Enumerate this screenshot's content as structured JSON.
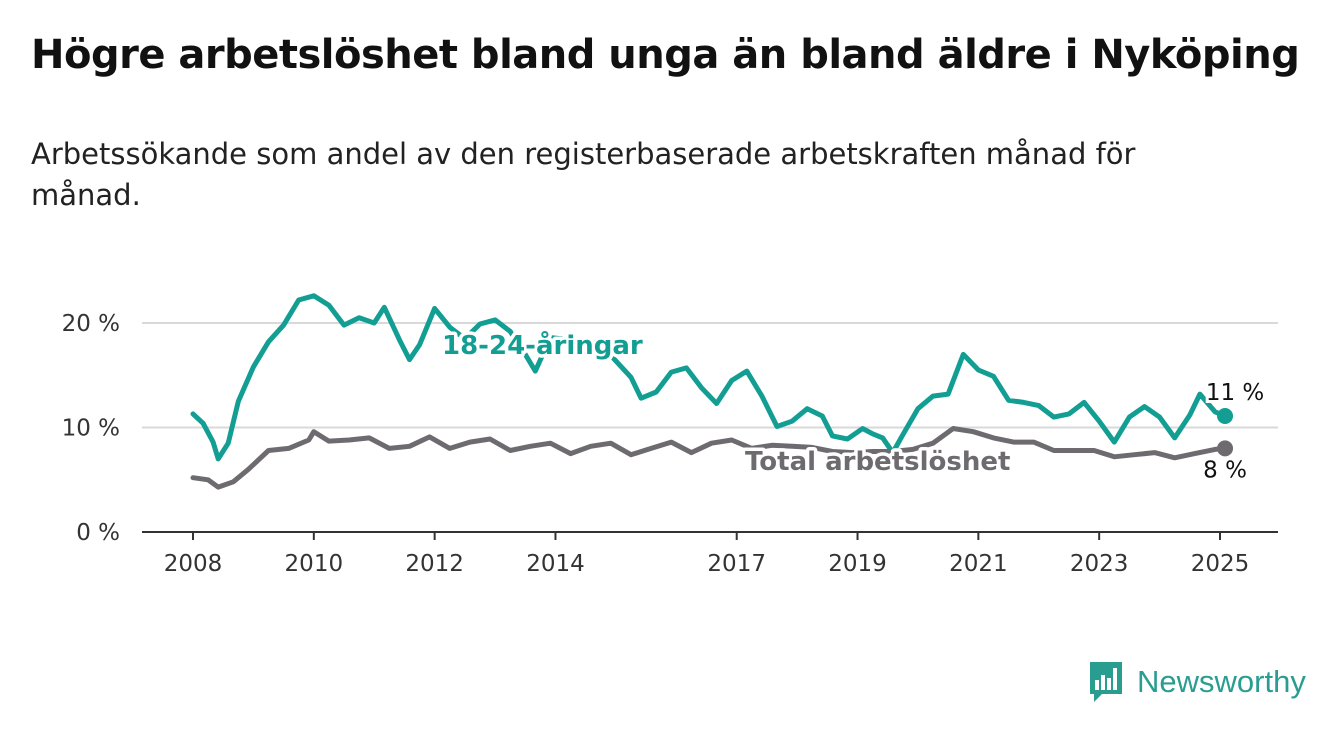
{
  "title": "Högre arbetslöshet bland unga än bland äldre i Nyköping",
  "subtitle": "Arbetssökande som andel av den registerbaserade arbetskraften månad för månad.",
  "brand": {
    "name": "Newsworthy",
    "color": "#2a9d91",
    "icon": "newsworthy-logo-icon"
  },
  "chart_data": {
    "type": "line",
    "x_ticks": [
      "2008",
      "2010",
      "2012",
      "2014",
      "2017",
      "2019",
      "2021",
      "2023",
      "2025"
    ],
    "y_ticks": [
      "0 %",
      "10 %",
      "20 %"
    ],
    "ylim": [
      0,
      20
    ],
    "xlim": [
      "2007-01",
      "2026-01"
    ],
    "grid": true,
    "legend": "inline labels",
    "series": [
      {
        "name": "18-24-åringar",
        "color": "#139e93",
        "end_label": "11 %",
        "points": [
          [
            "2008-01",
            11.3
          ],
          [
            "2008-03",
            10.4
          ],
          [
            "2008-05",
            8.6
          ],
          [
            "2008-06",
            7.0
          ],
          [
            "2008-08",
            8.5
          ],
          [
            "2008-10",
            12.5
          ],
          [
            "2009-01",
            15.8
          ],
          [
            "2009-04",
            18.2
          ],
          [
            "2009-07",
            19.8
          ],
          [
            "2009-10",
            22.2
          ],
          [
            "2010-01",
            22.6
          ],
          [
            "2010-04",
            21.7
          ],
          [
            "2010-07",
            19.8
          ],
          [
            "2010-10",
            20.5
          ],
          [
            "2011-01",
            20.0
          ],
          [
            "2011-03",
            21.5
          ],
          [
            "2011-06",
            18.4
          ],
          [
            "2011-08",
            16.5
          ],
          [
            "2011-10",
            17.9
          ],
          [
            "2012-01",
            21.4
          ],
          [
            "2012-04",
            19.6
          ],
          [
            "2012-07",
            18.5
          ],
          [
            "2012-10",
            19.9
          ],
          [
            "2013-01",
            20.3
          ],
          [
            "2013-04",
            19.2
          ],
          [
            "2013-07",
            17.0
          ],
          [
            "2013-09",
            15.4
          ],
          [
            "2013-12",
            18.6
          ],
          [
            "2014-04",
            18.4
          ],
          [
            "2014-08",
            17.0
          ],
          [
            "2014-12",
            16.9
          ],
          [
            "2015-04",
            14.8
          ],
          [
            "2015-06",
            12.8
          ],
          [
            "2015-09",
            13.4
          ],
          [
            "2015-12",
            15.3
          ],
          [
            "2016-03",
            15.7
          ],
          [
            "2016-06",
            13.8
          ],
          [
            "2016-09",
            12.3
          ],
          [
            "2016-12",
            14.5
          ],
          [
            "2017-03",
            15.4
          ],
          [
            "2017-06",
            13.0
          ],
          [
            "2017-09",
            10.1
          ],
          [
            "2017-12",
            10.6
          ],
          [
            "2018-03",
            11.8
          ],
          [
            "2018-06",
            11.1
          ],
          [
            "2018-08",
            9.2
          ],
          [
            "2018-11",
            8.9
          ],
          [
            "2019-02",
            9.9
          ],
          [
            "2019-04",
            9.4
          ],
          [
            "2019-06",
            9.0
          ],
          [
            "2019-08",
            7.6
          ],
          [
            "2019-10",
            9.3
          ],
          [
            "2020-01",
            11.8
          ],
          [
            "2020-04",
            13.0
          ],
          [
            "2020-07",
            13.2
          ],
          [
            "2020-10",
            17.0
          ],
          [
            "2021-01",
            15.5
          ],
          [
            "2021-04",
            14.9
          ],
          [
            "2021-07",
            12.6
          ],
          [
            "2021-10",
            12.4
          ],
          [
            "2022-01",
            12.1
          ],
          [
            "2022-04",
            11.0
          ],
          [
            "2022-07",
            11.3
          ],
          [
            "2022-10",
            12.4
          ],
          [
            "2023-01",
            10.6
          ],
          [
            "2023-04",
            8.6
          ],
          [
            "2023-07",
            11.0
          ],
          [
            "2023-10",
            12.0
          ],
          [
            "2024-01",
            11.0
          ],
          [
            "2024-04",
            9.0
          ],
          [
            "2024-07",
            11.2
          ],
          [
            "2024-09",
            13.2
          ],
          [
            "2024-12",
            11.5
          ],
          [
            "2025-02",
            11.1
          ]
        ]
      },
      {
        "name": "Total arbetslöshet",
        "color": "#6e6b70",
        "end_label": "8 %",
        "points": [
          [
            "2008-01",
            5.2
          ],
          [
            "2008-04",
            5.0
          ],
          [
            "2008-06",
            4.3
          ],
          [
            "2008-09",
            4.8
          ],
          [
            "2008-12",
            6.0
          ],
          [
            "2009-04",
            7.8
          ],
          [
            "2009-08",
            8.0
          ],
          [
            "2009-12",
            8.8
          ],
          [
            "2010-01",
            9.6
          ],
          [
            "2010-04",
            8.7
          ],
          [
            "2010-08",
            8.8
          ],
          [
            "2010-12",
            9.0
          ],
          [
            "2011-04",
            8.0
          ],
          [
            "2011-08",
            8.2
          ],
          [
            "2011-12",
            9.1
          ],
          [
            "2012-04",
            8.0
          ],
          [
            "2012-08",
            8.6
          ],
          [
            "2012-12",
            8.9
          ],
          [
            "2013-04",
            7.8
          ],
          [
            "2013-08",
            8.2
          ],
          [
            "2013-12",
            8.5
          ],
          [
            "2014-04",
            7.5
          ],
          [
            "2014-08",
            8.2
          ],
          [
            "2014-12",
            8.5
          ],
          [
            "2015-04",
            7.4
          ],
          [
            "2015-08",
            8.0
          ],
          [
            "2015-12",
            8.6
          ],
          [
            "2016-04",
            7.6
          ],
          [
            "2016-08",
            8.5
          ],
          [
            "2016-12",
            8.8
          ],
          [
            "2017-04",
            8.0
          ],
          [
            "2017-08",
            8.3
          ],
          [
            "2017-12",
            8.2
          ],
          [
            "2018-04",
            8.1
          ],
          [
            "2018-08",
            7.7
          ],
          [
            "2018-12",
            7.6
          ],
          [
            "2019-04",
            7.7
          ],
          [
            "2019-08",
            7.7
          ],
          [
            "2019-12",
            7.9
          ],
          [
            "2020-04",
            8.5
          ],
          [
            "2020-08",
            9.9
          ],
          [
            "2020-12",
            9.6
          ],
          [
            "2021-04",
            9.0
          ],
          [
            "2021-08",
            8.6
          ],
          [
            "2021-12",
            8.6
          ],
          [
            "2022-04",
            7.8
          ],
          [
            "2022-08",
            7.8
          ],
          [
            "2022-12",
            7.8
          ],
          [
            "2023-04",
            7.2
          ],
          [
            "2023-08",
            7.4
          ],
          [
            "2023-12",
            7.6
          ],
          [
            "2024-04",
            7.1
          ],
          [
            "2024-08",
            7.5
          ],
          [
            "2024-12",
            7.9
          ],
          [
            "2025-02",
            8.0
          ]
        ]
      }
    ]
  }
}
